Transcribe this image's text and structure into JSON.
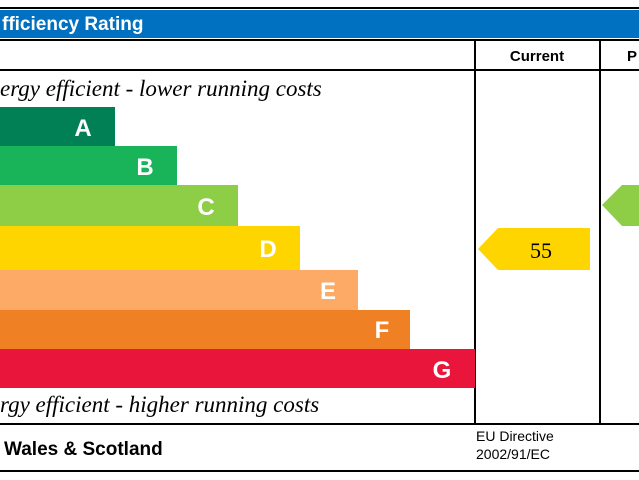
{
  "header": {
    "title": "fficiency Rating"
  },
  "columns": [
    "Current",
    "P"
  ],
  "top_note": "ergy efficient - lower running costs",
  "bottom_note": "rgy efficient - higher running costs",
  "bands": [
    "A",
    "B",
    "C",
    "D",
    "E",
    "F",
    "G"
  ],
  "current": {
    "value": "55"
  },
  "footer": {
    "region": "Wales & Scotland",
    "directive": [
      "EU Directive",
      "2002/91/EC"
    ]
  }
}
